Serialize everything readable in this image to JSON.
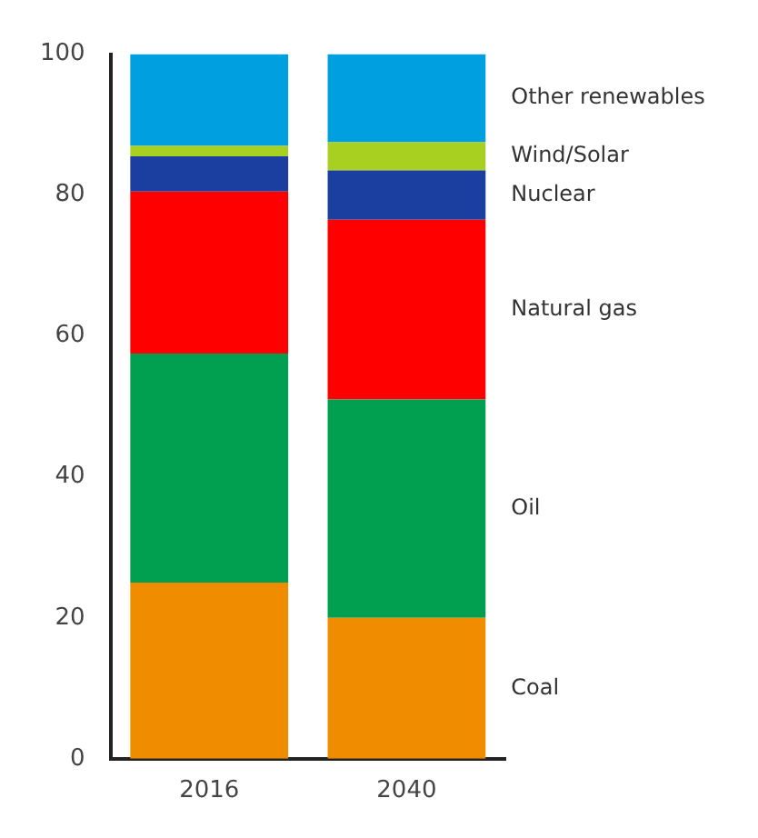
{
  "chart_data": {
    "type": "bar",
    "stacked": true,
    "categories": [
      "2016",
      "2040"
    ],
    "ylim": [
      0,
      100
    ],
    "yticks": [
      0,
      20,
      40,
      60,
      80,
      100
    ],
    "grid": false,
    "legend": false,
    "series": [
      {
        "name": "Coal",
        "color": "#f08c00",
        "values": [
          25,
          20
        ]
      },
      {
        "name": "Oil",
        "color": "#00a050",
        "values": [
          32.5,
          31
        ]
      },
      {
        "name": "Natural gas",
        "color": "#ff0000",
        "values": [
          23,
          25.5
        ]
      },
      {
        "name": "Nuclear",
        "color": "#1a3fa0",
        "values": [
          5,
          7
        ]
      },
      {
        "name": "Wind/Solar",
        "color": "#a8d020",
        "values": [
          1.5,
          4
        ]
      },
      {
        "name": "Other renewables",
        "color": "#00a0e0",
        "values": [
          13,
          12.5
        ]
      }
    ]
  }
}
